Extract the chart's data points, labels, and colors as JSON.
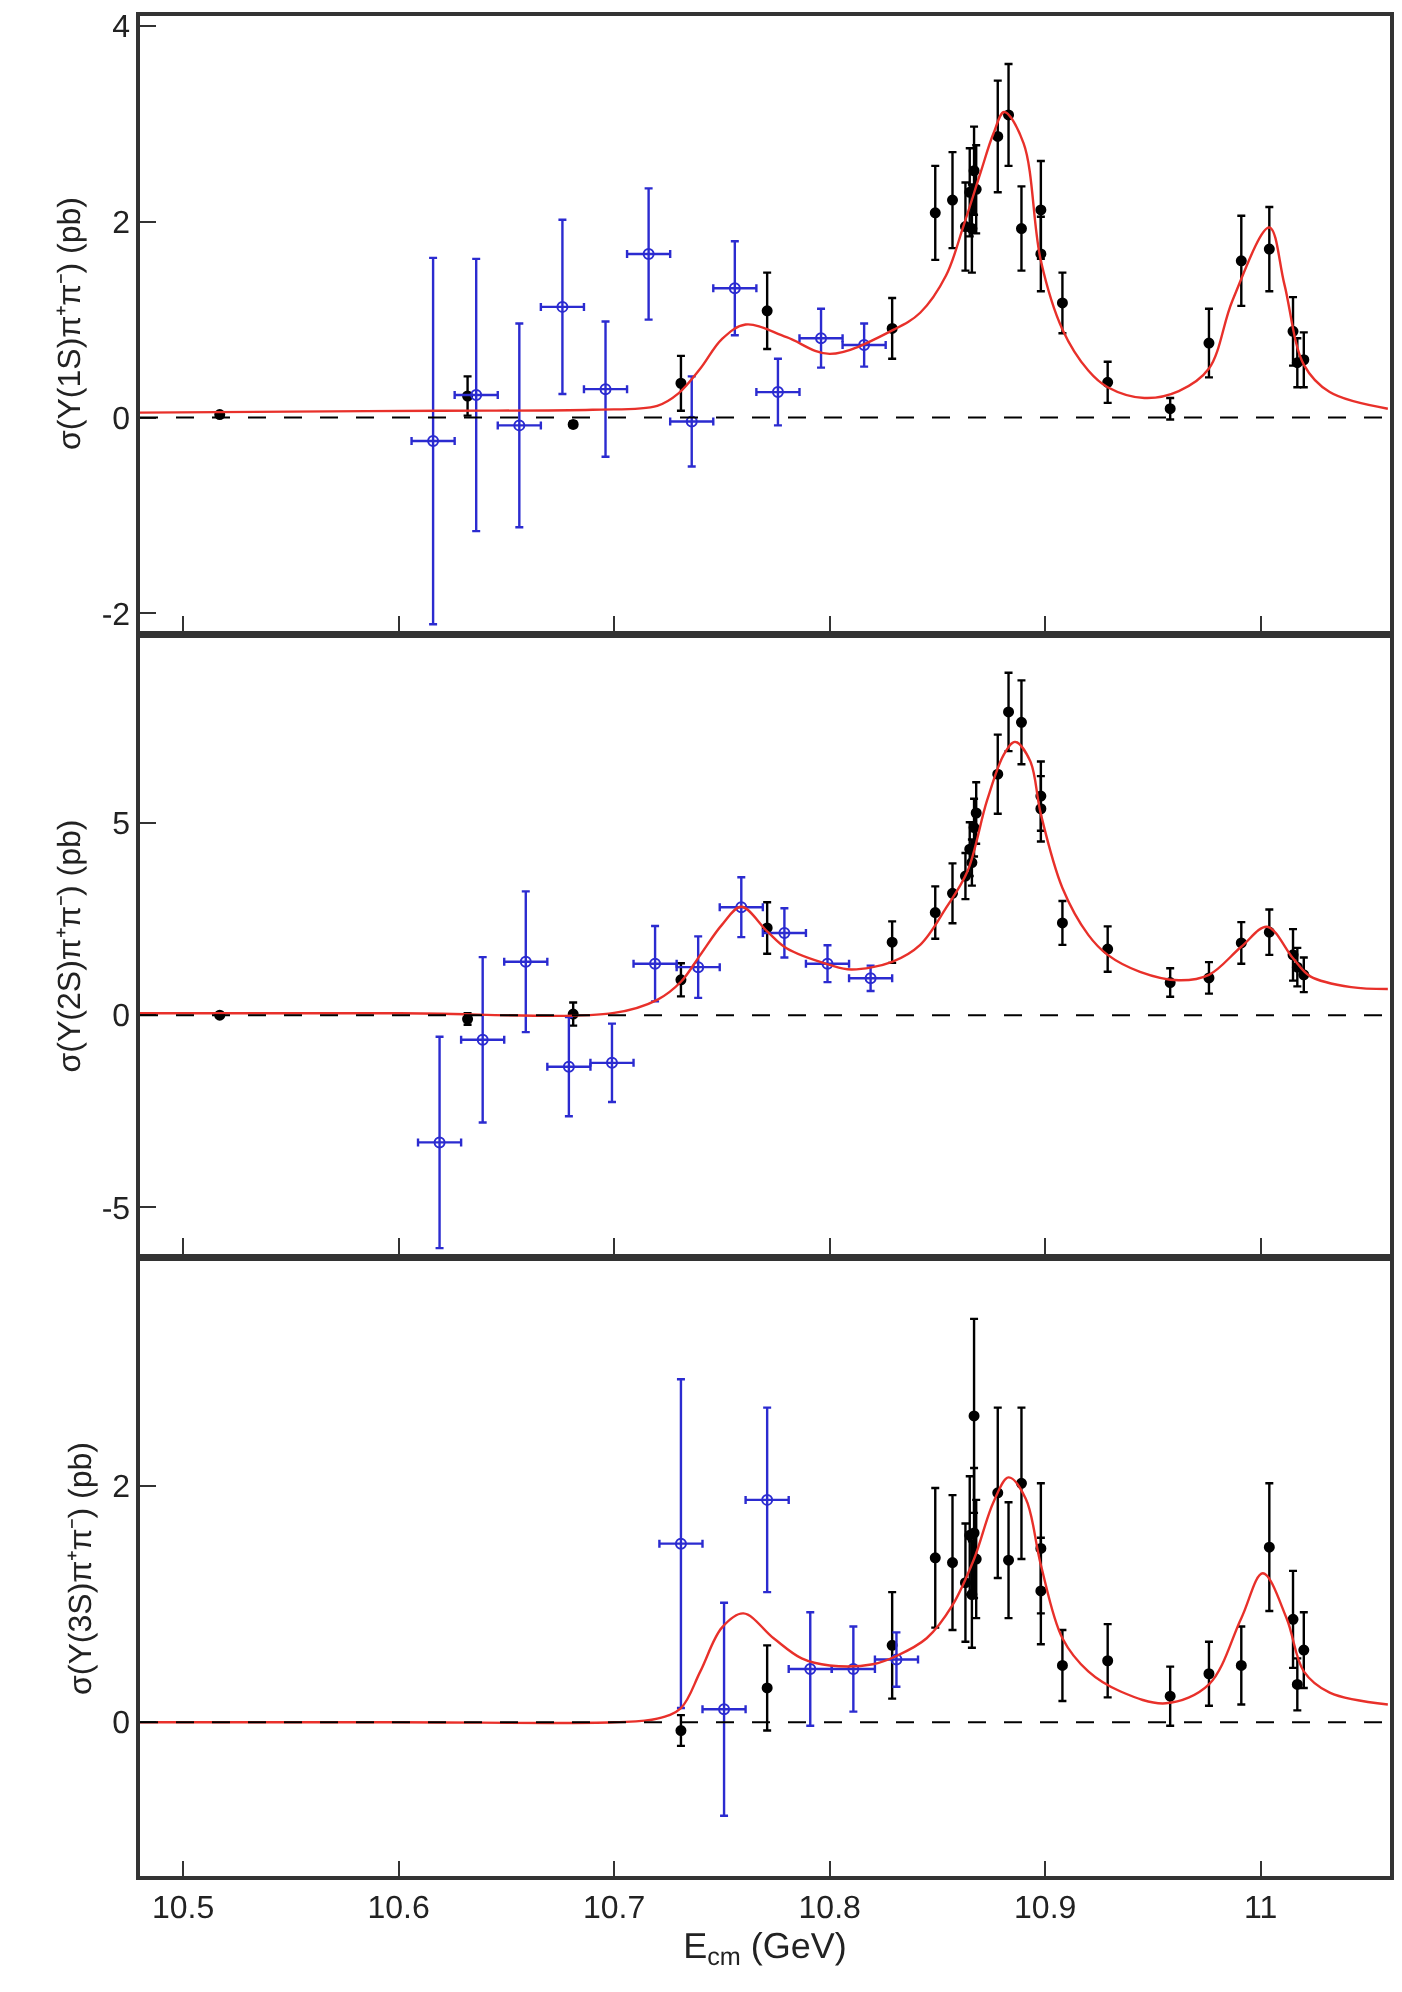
{
  "chart_data": [
    {
      "type": "scatter",
      "ylabel": "σ(Υ(1S)π⁺π⁻) (pb)",
      "xlim": [
        10.48,
        11.06
      ],
      "xticks": [
        10.5,
        10.6,
        10.7,
        10.8,
        10.9,
        11
      ],
      "ylim": [
        -2.18,
        4.1
      ],
      "yticks": [
        -2,
        0,
        2,
        4
      ],
      "tick_labels": "y",
      "ref_lines": [
        {
          "axis": "y",
          "value": 0,
          "color": "#000000",
          "line_style": "dashed"
        }
      ],
      "series": [
        {
          "marker": "circle",
          "color": "#000000",
          "x": [
            10.517,
            10.632,
            10.681,
            10.731,
            10.771,
            10.829,
            10.849,
            10.857,
            10.863,
            10.865,
            10.866,
            10.867,
            10.868,
            10.878,
            10.883,
            10.889,
            10.898,
            10.898,
            10.908,
            10.929,
            10.958,
            10.976,
            10.991,
            11.004,
            11.015,
            11.017,
            11.02
          ],
          "values": [
            0.03,
            0.22,
            -0.07,
            0.35,
            1.09,
            0.91,
            2.09,
            2.22,
            1.95,
            2.3,
            1.93,
            2.52,
            2.33,
            2.87,
            3.09,
            1.93,
            2.12,
            1.67,
            1.17,
            0.36,
            0.09,
            0.76,
            1.6,
            1.72,
            0.88,
            0.56,
            0.59
          ],
          "errors": [
            0.02,
            0.2,
            0.03,
            0.28,
            0.39,
            0.31,
            0.48,
            0.49,
            0.45,
            0.45,
            0.45,
            0.45,
            0.45,
            0.57,
            0.52,
            0.43,
            0.5,
            0.38,
            0.31,
            0.21,
            0.11,
            0.35,
            0.46,
            0.43,
            0.35,
            0.25,
            0.28
          ]
        },
        {
          "marker": "circle",
          "color": "#2b2bd0",
          "x": [
            10.616,
            10.636,
            10.656,
            10.676,
            10.696,
            10.716,
            10.736,
            10.756,
            10.776,
            10.796,
            10.816
          ],
          "values": [
            -0.24,
            0.23,
            -0.08,
            1.13,
            0.29,
            1.67,
            -0.04,
            1.32,
            0.26,
            0.81,
            0.74
          ],
          "errors": [
            1.87,
            1.39,
            1.04,
            0.89,
            0.69,
            0.67,
            0.46,
            0.48,
            0.34,
            0.3,
            0.22
          ],
          "xerrors": [
            0.01,
            0.01,
            0.01,
            0.01,
            0.01,
            0.01,
            0.01,
            0.01,
            0.01,
            0.01,
            0.01
          ]
        },
        {
          "type": "line",
          "color": "#e8302a",
          "x": [
            10.48,
            10.55,
            10.62,
            10.69,
            10.72,
            10.73,
            10.74,
            10.75,
            10.761,
            10.78,
            10.8,
            10.83,
            10.842,
            10.854,
            10.862,
            10.87,
            10.876,
            10.881,
            10.89,
            10.898,
            10.908,
            10.92,
            10.929,
            10.946,
            10.962,
            10.976,
            10.987,
            11.004,
            11.011,
            11.02,
            11.032,
            11.059
          ],
          "values": [
            0.05,
            0.06,
            0.07,
            0.08,
            0.12,
            0.25,
            0.5,
            0.8,
            0.95,
            0.82,
            0.65,
            0.9,
            1.07,
            1.45,
            1.95,
            2.5,
            2.9,
            3.12,
            2.8,
            1.6,
            0.9,
            0.48,
            0.31,
            0.2,
            0.27,
            0.5,
            1.2,
            1.94,
            1.36,
            0.54,
            0.26,
            0.09
          ]
        }
      ]
    },
    {
      "type": "scatter",
      "ylabel": "σ(Υ(2S)π⁺π⁻) (pb)",
      "xlim": [
        10.48,
        11.06
      ],
      "xticks": [
        10.5,
        10.6,
        10.7,
        10.8,
        10.9,
        11
      ],
      "ylim": [
        -6.2,
        9.8
      ],
      "yticks": [
        -5,
        0,
        5
      ],
      "tick_labels": "y",
      "ref_lines": [
        {
          "axis": "y",
          "value": 0,
          "color": "#000000",
          "line_style": "dashed"
        }
      ],
      "series": [
        {
          "marker": "circle",
          "color": "#000000",
          "x": [
            10.517,
            10.632,
            10.681,
            10.731,
            10.771,
            10.829,
            10.849,
            10.857,
            10.863,
            10.865,
            10.866,
            10.867,
            10.868,
            10.878,
            10.883,
            10.889,
            10.898,
            10.898,
            10.908,
            10.929,
            10.958,
            10.976,
            10.991,
            11.004,
            11.015,
            11.017,
            11.02
          ],
          "values": [
            0.0,
            -0.1,
            0.03,
            0.92,
            2.27,
            1.9,
            2.67,
            3.17,
            3.62,
            4.32,
            3.97,
            4.88,
            5.26,
            6.27,
            7.89,
            7.62,
            5.7,
            5.37,
            2.4,
            1.72,
            0.85,
            0.97,
            1.88,
            2.16,
            1.57,
            1.25,
            1.05
          ],
          "errors": [
            0.05,
            0.15,
            0.3,
            0.43,
            0.67,
            0.54,
            0.68,
            0.78,
            0.6,
            0.7,
            0.6,
            0.75,
            0.8,
            1.03,
            1.02,
            1.09,
            0.9,
            0.85,
            0.57,
            0.59,
            0.37,
            0.41,
            0.54,
            0.59,
            0.67,
            0.5,
            0.45
          ]
        },
        {
          "marker": "circle",
          "color": "#2b2bd0",
          "x": [
            10.619,
            10.639,
            10.659,
            10.679,
            10.699,
            10.719,
            10.739,
            10.759,
            10.779,
            10.799,
            10.819
          ],
          "values": [
            -3.31,
            -0.64,
            1.39,
            -1.34,
            -1.24,
            1.34,
            1.25,
            2.81,
            2.14,
            1.34,
            0.96
          ],
          "errors": [
            2.75,
            2.15,
            1.83,
            1.29,
            1.02,
            0.98,
            0.8,
            0.78,
            0.64,
            0.48,
            0.33
          ],
          "xerrors": [
            0.01,
            0.01,
            0.01,
            0.01,
            0.01,
            0.01,
            0.01,
            0.01,
            0.01,
            0.01,
            0.01
          ]
        },
        {
          "type": "line",
          "color": "#e8302a",
          "x": [
            10.48,
            10.6,
            10.7,
            10.72,
            10.731,
            10.74,
            10.75,
            10.759,
            10.771,
            10.78,
            10.8,
            10.81,
            10.829,
            10.842,
            10.854,
            10.864,
            10.873,
            10.881,
            10.886,
            10.893,
            10.898,
            10.908,
            10.92,
            10.929,
            10.944,
            10.962,
            10.976,
            10.991,
            11.003,
            11.015,
            11.023,
            11.042,
            11.059
          ],
          "values": [
            0.05,
            0.05,
            0.06,
            0.4,
            0.87,
            1.57,
            2.35,
            2.82,
            2.18,
            1.74,
            1.31,
            1.19,
            1.39,
            1.83,
            2.79,
            3.75,
            5.58,
            6.8,
            7.11,
            6.62,
            5.23,
            3.31,
            2.09,
            1.57,
            1.13,
            0.91,
            1.05,
            1.78,
            2.3,
            1.48,
            1.01,
            0.73,
            0.68
          ]
        }
      ]
    },
    {
      "type": "scatter",
      "ylabel": "σ(Υ(3S)π⁺π⁻) (pb)",
      "xlabel": "E$_{cm}$ (GeV)",
      "xlim": [
        10.48,
        11.06
      ],
      "xticks": [
        10.5,
        10.6,
        10.7,
        10.8,
        10.9,
        11
      ],
      "ylim": [
        -1.3,
        3.9
      ],
      "yticks": [
        0,
        2
      ],
      "ref_lines": [
        {
          "axis": "y",
          "value": 0,
          "color": "#000000",
          "line_style": "dashed"
        }
      ],
      "series": [
        {
          "marker": "circle",
          "color": "#000000",
          "x": [
            10.731,
            10.771,
            10.829,
            10.849,
            10.857,
            10.863,
            10.865,
            10.866,
            10.867,
            10.867,
            10.868,
            10.878,
            10.883,
            10.889,
            10.898,
            10.898,
            10.908,
            10.929,
            10.958,
            10.976,
            10.991,
            11.004,
            11.015,
            11.017,
            11.02
          ],
          "values": [
            -0.07,
            0.29,
            0.65,
            1.39,
            1.35,
            1.18,
            1.58,
            1.08,
            2.59,
            1.6,
            1.38,
            1.94,
            1.37,
            2.02,
            1.47,
            1.11,
            0.48,
            0.52,
            0.22,
            0.41,
            0.48,
            1.48,
            0.87,
            0.32,
            0.61
          ],
          "errors": [
            0.13,
            0.36,
            0.45,
            0.59,
            0.57,
            0.5,
            0.5,
            0.45,
            0.82,
            0.55,
            0.5,
            0.72,
            0.49,
            0.64,
            0.55,
            0.45,
            0.3,
            0.31,
            0.25,
            0.27,
            0.33,
            0.54,
            0.41,
            0.22,
            0.32
          ]
        },
        {
          "marker": "circle",
          "color": "#2b2bd0",
          "x": [
            10.731,
            10.751,
            10.771,
            10.791,
            10.811,
            10.831
          ],
          "values": [
            1.51,
            0.11,
            1.88,
            0.45,
            0.45,
            0.53
          ],
          "errors": [
            1.39,
            0.9,
            0.78,
            0.48,
            0.36,
            0.23
          ],
          "xerrors": [
            0.01,
            0.01,
            0.01,
            0.01,
            0.01,
            0.01
          ]
        },
        {
          "type": "line",
          "color": "#e8302a",
          "x": [
            10.48,
            10.6,
            10.7,
            10.72,
            10.731,
            10.74,
            10.75,
            10.76,
            10.774,
            10.787,
            10.8,
            10.82,
            10.831,
            10.845,
            10.857,
            10.867,
            10.876,
            10.883,
            10.891,
            10.898,
            10.908,
            10.92,
            10.935,
            10.956,
            10.976,
            10.991,
            11.001,
            11.012,
            11.02,
            11.032,
            11.059
          ],
          "values": [
            0.0,
            0.0,
            0.0,
            0.03,
            0.12,
            0.43,
            0.8,
            0.92,
            0.71,
            0.54,
            0.48,
            0.49,
            0.56,
            0.71,
            0.99,
            1.38,
            1.86,
            2.07,
            1.89,
            1.33,
            0.71,
            0.43,
            0.26,
            0.16,
            0.32,
            0.88,
            1.26,
            0.88,
            0.43,
            0.25,
            0.15
          ]
        }
      ]
    }
  ]
}
